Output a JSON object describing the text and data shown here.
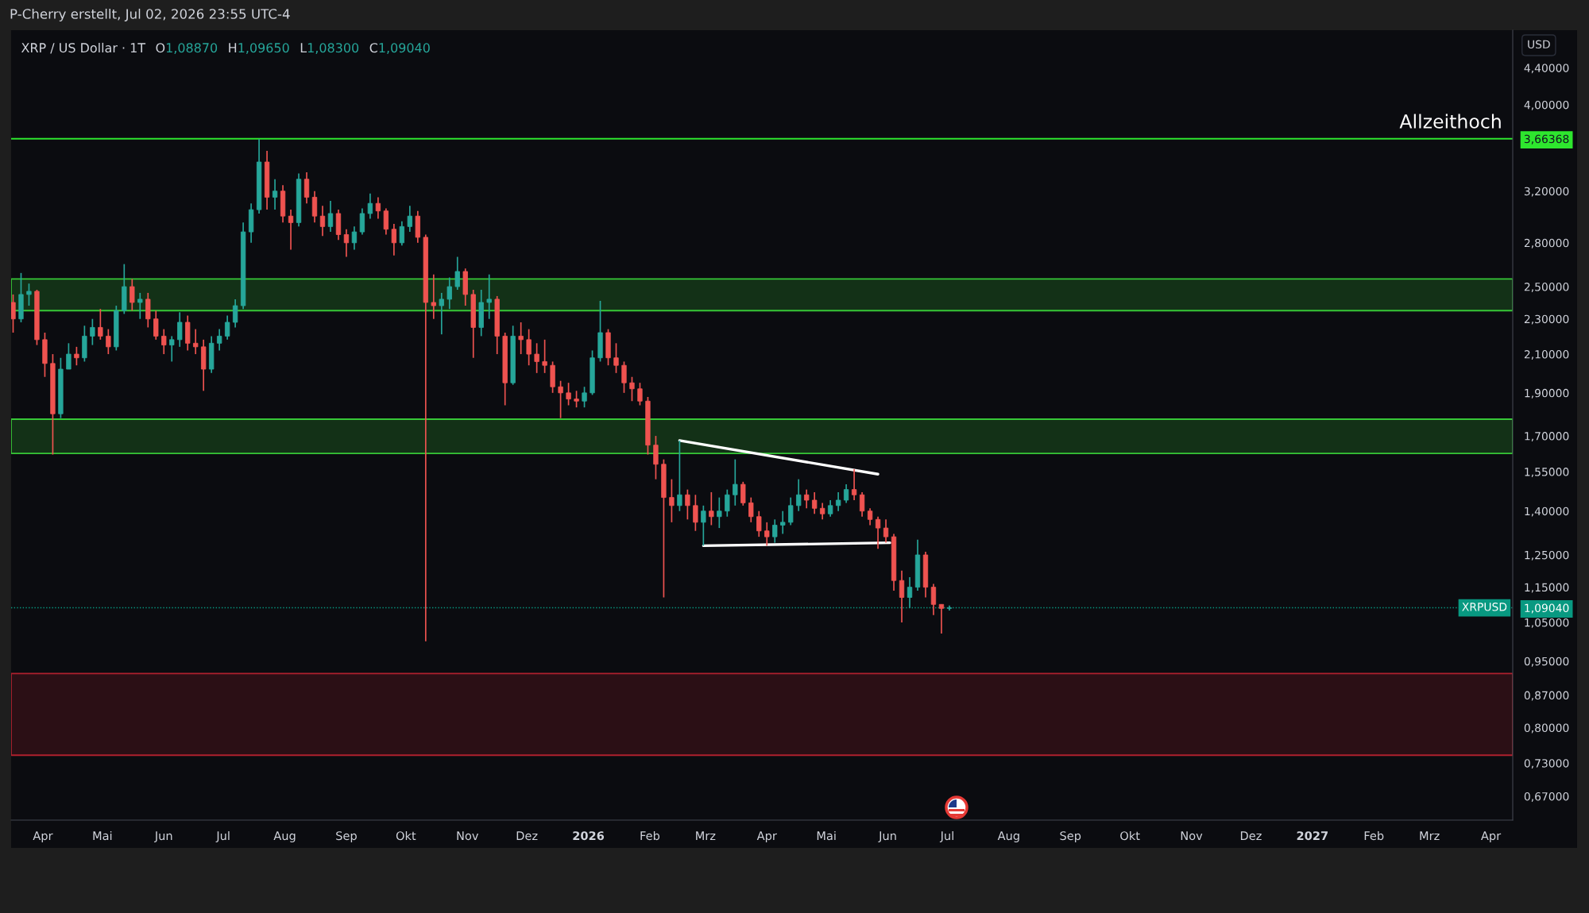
{
  "chart_data": {
    "type": "candlestick",
    "title": "XRP / US Dollar · 1T",
    "subtitle": "O1,08870 H1,09650 L1,08300 C1,09040",
    "ylabel": "USD",
    "log": true,
    "x": [
      "2025-03-17",
      "2025-03-21",
      "2025-03-25",
      "2025-03-29",
      "2025-04-02",
      "2025-04-06",
      "2025-04-10",
      "2025-04-14",
      "2025-04-18",
      "2025-04-22",
      "2025-04-26",
      "2025-04-30",
      "2025-05-04",
      "2025-05-08",
      "2025-05-12",
      "2025-05-16",
      "2025-05-20",
      "2025-05-24",
      "2025-05-28",
      "2025-06-01",
      "2025-06-05",
      "2025-06-09",
      "2025-06-13",
      "2025-06-17",
      "2025-06-21",
      "2025-06-25",
      "2025-06-29",
      "2025-07-03",
      "2025-07-07",
      "2025-07-11",
      "2025-07-15",
      "2025-07-19",
      "2025-07-23",
      "2025-07-27",
      "2025-07-31",
      "2025-08-04",
      "2025-08-08",
      "2025-08-12",
      "2025-08-16",
      "2025-08-20",
      "2025-08-24",
      "2025-08-28",
      "2025-09-01",
      "2025-09-05",
      "2025-09-09",
      "2025-09-13",
      "2025-09-17",
      "2025-09-21",
      "2025-09-25",
      "2025-09-29",
      "2025-10-03",
      "2025-10-07",
      "2025-10-11",
      "2025-10-15",
      "2025-10-19",
      "2025-10-23",
      "2025-10-27",
      "2025-10-31",
      "2025-11-04",
      "2025-11-08",
      "2025-11-12",
      "2025-11-16",
      "2025-11-20",
      "2025-11-24",
      "2025-11-28",
      "2025-12-02",
      "2025-12-06",
      "2025-12-10",
      "2025-12-14",
      "2025-12-18",
      "2025-12-22",
      "2025-12-26",
      "2025-12-30",
      "2026-01-03",
      "2026-01-07",
      "2026-01-11",
      "2026-01-15",
      "2026-01-19",
      "2026-01-23",
      "2026-01-27",
      "2026-01-31",
      "2026-02-04",
      "2026-02-08",
      "2026-02-12",
      "2026-02-16",
      "2026-02-20",
      "2026-02-24",
      "2026-02-28",
      "2026-03-04",
      "2026-03-08",
      "2026-03-12",
      "2026-03-16",
      "2026-03-20",
      "2026-03-24",
      "2026-03-28",
      "2026-04-01",
      "2026-04-05",
      "2026-04-09",
      "2026-04-13",
      "2026-04-17",
      "2026-04-21",
      "2026-04-25",
      "2026-04-29",
      "2026-05-03",
      "2026-05-07",
      "2026-05-11",
      "2026-05-15",
      "2026-05-19",
      "2026-05-23",
      "2026-05-27",
      "2026-05-31",
      "2026-06-04",
      "2026-06-08",
      "2026-06-12",
      "2026-06-16",
      "2026-06-20",
      "2026-06-24",
      "2026-06-28",
      "2026-07-02"
    ],
    "ohlc": [
      [
        2.4,
        2.45,
        2.22,
        2.3
      ],
      [
        2.3,
        2.59,
        2.28,
        2.45
      ],
      [
        2.45,
        2.52,
        2.38,
        2.47
      ],
      [
        2.47,
        2.48,
        2.15,
        2.18
      ],
      [
        2.18,
        2.22,
        1.98,
        2.05
      ],
      [
        2.05,
        2.1,
        1.62,
        1.8
      ],
      [
        1.8,
        2.08,
        1.78,
        2.02
      ],
      [
        2.02,
        2.16,
        2.02,
        2.1
      ],
      [
        2.1,
        2.14,
        2.04,
        2.08
      ],
      [
        2.08,
        2.26,
        2.06,
        2.2
      ],
      [
        2.2,
        2.3,
        2.15,
        2.25
      ],
      [
        2.25,
        2.36,
        2.18,
        2.2
      ],
      [
        2.2,
        2.24,
        2.1,
        2.14
      ],
      [
        2.14,
        2.38,
        2.12,
        2.35
      ],
      [
        2.35,
        2.65,
        2.33,
        2.5
      ],
      [
        2.5,
        2.55,
        2.35,
        2.4
      ],
      [
        2.4,
        2.46,
        2.3,
        2.42
      ],
      [
        2.42,
        2.46,
        2.25,
        2.3
      ],
      [
        2.3,
        2.35,
        2.18,
        2.2
      ],
      [
        2.2,
        2.24,
        2.1,
        2.15
      ],
      [
        2.15,
        2.2,
        2.06,
        2.18
      ],
      [
        2.18,
        2.34,
        2.14,
        2.28
      ],
      [
        2.28,
        2.32,
        2.12,
        2.16
      ],
      [
        2.16,
        2.24,
        2.1,
        2.14
      ],
      [
        2.14,
        2.18,
        1.91,
        2.02
      ],
      [
        2.02,
        2.2,
        2.0,
        2.16
      ],
      [
        2.16,
        2.24,
        2.12,
        2.2
      ],
      [
        2.2,
        2.32,
        2.18,
        2.28
      ],
      [
        2.28,
        2.42,
        2.25,
        2.38
      ],
      [
        2.38,
        2.95,
        2.36,
        2.88
      ],
      [
        2.88,
        3.1,
        2.8,
        3.05
      ],
      [
        3.05,
        3.66,
        3.02,
        3.45
      ],
      [
        3.45,
        3.55,
        3.05,
        3.15
      ],
      [
        3.15,
        3.3,
        3.05,
        3.2
      ],
      [
        3.2,
        3.25,
        2.95,
        3.0
      ],
      [
        3.0,
        3.05,
        2.75,
        2.95
      ],
      [
        2.95,
        3.35,
        2.92,
        3.3
      ],
      [
        3.3,
        3.36,
        3.1,
        3.15
      ],
      [
        3.15,
        3.2,
        2.95,
        3.0
      ],
      [
        3.0,
        3.08,
        2.85,
        2.92
      ],
      [
        2.92,
        3.12,
        2.88,
        3.02
      ],
      [
        3.02,
        3.05,
        2.82,
        2.86
      ],
      [
        2.86,
        2.9,
        2.7,
        2.8
      ],
      [
        2.8,
        2.92,
        2.75,
        2.88
      ],
      [
        2.88,
        3.06,
        2.86,
        3.02
      ],
      [
        3.02,
        3.18,
        2.98,
        3.1
      ],
      [
        3.1,
        3.15,
        2.98,
        3.04
      ],
      [
        3.04,
        3.06,
        2.86,
        2.9
      ],
      [
        2.9,
        2.94,
        2.71,
        2.8
      ],
      [
        2.8,
        2.96,
        2.78,
        2.92
      ],
      [
        2.92,
        3.08,
        2.88,
        3.0
      ],
      [
        3.0,
        3.04,
        2.8,
        2.84
      ],
      [
        2.84,
        2.86,
        1.0,
        2.4
      ],
      [
        2.4,
        2.58,
        2.3,
        2.38
      ],
      [
        2.38,
        2.46,
        2.21,
        2.42
      ],
      [
        2.42,
        2.56,
        2.36,
        2.5
      ],
      [
        2.5,
        2.7,
        2.48,
        2.6
      ],
      [
        2.6,
        2.62,
        2.38,
        2.45
      ],
      [
        2.45,
        2.48,
        2.08,
        2.25
      ],
      [
        2.25,
        2.48,
        2.2,
        2.4
      ],
      [
        2.4,
        2.58,
        2.3,
        2.42
      ],
      [
        2.42,
        2.44,
        2.1,
        2.2
      ],
      [
        2.2,
        2.22,
        1.84,
        1.95
      ],
      [
        1.95,
        2.26,
        1.94,
        2.2
      ],
      [
        2.2,
        2.28,
        2.1,
        2.18
      ],
      [
        2.18,
        2.24,
        2.04,
        2.1
      ],
      [
        2.1,
        2.16,
        2.0,
        2.06
      ],
      [
        2.06,
        2.18,
        2.0,
        2.04
      ],
      [
        2.04,
        2.06,
        1.9,
        1.93
      ],
      [
        1.93,
        1.96,
        1.78,
        1.9
      ],
      [
        1.9,
        1.95,
        1.84,
        1.87
      ],
      [
        1.87,
        1.91,
        1.83,
        1.86
      ],
      [
        1.86,
        1.93,
        1.83,
        1.9
      ],
      [
        1.9,
        2.12,
        1.89,
        2.08
      ],
      [
        2.08,
        2.41,
        2.06,
        2.22
      ],
      [
        2.22,
        2.24,
        2.04,
        2.08
      ],
      [
        2.08,
        2.16,
        2.0,
        2.04
      ],
      [
        2.04,
        2.06,
        1.9,
        1.95
      ],
      [
        1.95,
        1.98,
        1.86,
        1.92
      ],
      [
        1.92,
        1.95,
        1.84,
        1.86
      ],
      [
        1.86,
        1.88,
        1.62,
        1.66
      ],
      [
        1.66,
        1.7,
        1.52,
        1.58
      ],
      [
        1.58,
        1.6,
        1.12,
        1.45
      ],
      [
        1.45,
        1.52,
        1.36,
        1.42
      ],
      [
        1.42,
        1.68,
        1.4,
        1.46
      ],
      [
        1.46,
        1.48,
        1.37,
        1.42
      ],
      [
        1.42,
        1.46,
        1.33,
        1.36
      ],
      [
        1.36,
        1.42,
        1.28,
        1.4
      ],
      [
        1.4,
        1.47,
        1.35,
        1.38
      ],
      [
        1.38,
        1.45,
        1.34,
        1.4
      ],
      [
        1.4,
        1.48,
        1.38,
        1.46
      ],
      [
        1.46,
        1.6,
        1.42,
        1.5
      ],
      [
        1.5,
        1.51,
        1.42,
        1.43
      ],
      [
        1.43,
        1.45,
        1.36,
        1.38
      ],
      [
        1.38,
        1.4,
        1.31,
        1.33
      ],
      [
        1.33,
        1.36,
        1.28,
        1.31
      ],
      [
        1.31,
        1.37,
        1.29,
        1.35
      ],
      [
        1.35,
        1.4,
        1.32,
        1.36
      ],
      [
        1.36,
        1.45,
        1.35,
        1.42
      ],
      [
        1.42,
        1.52,
        1.4,
        1.46
      ],
      [
        1.46,
        1.48,
        1.41,
        1.44
      ],
      [
        1.44,
        1.47,
        1.39,
        1.41
      ],
      [
        1.41,
        1.43,
        1.37,
        1.39
      ],
      [
        1.39,
        1.44,
        1.38,
        1.42
      ],
      [
        1.42,
        1.47,
        1.4,
        1.44
      ],
      [
        1.44,
        1.5,
        1.43,
        1.48
      ],
      [
        1.48,
        1.56,
        1.44,
        1.46
      ],
      [
        1.46,
        1.47,
        1.38,
        1.4
      ],
      [
        1.4,
        1.41,
        1.35,
        1.37
      ],
      [
        1.37,
        1.38,
        1.27,
        1.34
      ],
      [
        1.34,
        1.37,
        1.29,
        1.31
      ],
      [
        1.31,
        1.32,
        1.14,
        1.17
      ],
      [
        1.17,
        1.2,
        1.05,
        1.12
      ],
      [
        1.12,
        1.18,
        1.09,
        1.15
      ],
      [
        1.15,
        1.3,
        1.14,
        1.25
      ],
      [
        1.25,
        1.26,
        1.12,
        1.15
      ],
      [
        1.15,
        1.16,
        1.07,
        1.1
      ],
      [
        1.1,
        1.1,
        1.02,
        1.0887
      ],
      [
        1.0887,
        1.0965,
        1.083,
        1.0904
      ]
    ],
    "colors": [
      "#ef5350",
      "#26a69a",
      "#26a69a",
      "#ef5350",
      "#ef5350",
      "#ef5350",
      "#26a69a",
      "#26a69a",
      "#ef5350",
      "#26a69a",
      "#26a69a",
      "#ef5350",
      "#ef5350",
      "#26a69a",
      "#26a69a",
      "#ef5350",
      "#26a69a",
      "#ef5350",
      "#ef5350",
      "#ef5350",
      "#26a69a",
      "#26a69a",
      "#ef5350",
      "#ef5350",
      "#ef5350",
      "#26a69a",
      "#26a69a",
      "#26a69a",
      "#26a69a",
      "#26a69a",
      "#26a69a",
      "#26a69a",
      "#ef5350",
      "#26a69a",
      "#ef5350",
      "#ef5350",
      "#26a69a",
      "#ef5350",
      "#ef5350",
      "#ef5350",
      "#26a69a",
      "#ef5350",
      "#ef5350",
      "#26a69a",
      "#26a69a",
      "#26a69a",
      "#ef5350",
      "#ef5350",
      "#ef5350",
      "#26a69a",
      "#26a69a",
      "#ef5350",
      "#ef5350",
      "#ef5350",
      "#26a69a",
      "#26a69a",
      "#26a69a",
      "#ef5350",
      "#ef5350",
      "#26a69a",
      "#26a69a",
      "#ef5350",
      "#ef5350",
      "#26a69a",
      "#ef5350",
      "#ef5350",
      "#ef5350",
      "#ef5350",
      "#ef5350",
      "#ef5350",
      "#ef5350",
      "#ef5350",
      "#26a69a",
      "#26a69a",
      "#26a69a",
      "#ef5350",
      "#ef5350",
      "#ef5350",
      "#ef5350",
      "#ef5350",
      "#ef5350",
      "#ef5350",
      "#ef5350",
      "#ef5350",
      "#26a69a",
      "#ef5350",
      "#ef5350",
      "#26a69a",
      "#ef5350",
      "#26a69a",
      "#26a69a",
      "#26a69a",
      "#ef5350",
      "#ef5350",
      "#ef5350",
      "#ef5350",
      "#26a69a",
      "#26a69a",
      "#26a69a",
      "#26a69a",
      "#ef5350",
      "#ef5350",
      "#ef5350",
      "#26a69a",
      "#26a69a",
      "#26a69a",
      "#ef5350",
      "#ef5350",
      "#ef5350",
      "#ef5350",
      "#ef5350",
      "#ef5350",
      "#ef5350",
      "#26a69a",
      "#26a69a",
      "#ef5350",
      "#ef5350",
      "#ef5350",
      "#26a69a"
    ],
    "series": [
      {
        "type": "line",
        "x": [
          "2026-02-16",
          "2026-05-27"
        ],
        "values": [
          1.68,
          1.54
        ],
        "color": "#ffffff"
      },
      {
        "type": "line",
        "x": [
          "2026-02-28",
          "2026-06-02"
        ],
        "values": [
          1.28,
          1.29
        ],
        "color": "#ffffff"
      }
    ],
    "xlim": [
      "2025-03-16",
      "2027-04-12"
    ],
    "xticks": [
      {
        "value": "2025-04-01",
        "label": "Apr"
      },
      {
        "value": "2025-05-01",
        "label": "Mai"
      },
      {
        "value": "2025-06-01",
        "label": "Jun"
      },
      {
        "value": "2025-07-01",
        "label": "Jul"
      },
      {
        "value": "2025-08-01",
        "label": "Aug"
      },
      {
        "value": "2025-09-01",
        "label": "Sep"
      },
      {
        "value": "2025-10-01",
        "label": "Okt"
      },
      {
        "value": "2025-11-01",
        "label": "Nov"
      },
      {
        "value": "2025-12-01",
        "label": "Dez"
      },
      {
        "value": "2026-01-01",
        "label": "2026"
      },
      {
        "value": "2026-02-01",
        "label": "Feb"
      },
      {
        "value": "2026-03-01",
        "label": "Mrz"
      },
      {
        "value": "2026-04-01",
        "label": "Apr"
      },
      {
        "value": "2026-05-01",
        "label": "Mai"
      },
      {
        "value": "2026-06-01",
        "label": "Jun"
      },
      {
        "value": "2026-07-01",
        "label": "Jul"
      },
      {
        "value": "2026-08-01",
        "label": "Aug"
      },
      {
        "value": "2026-09-01",
        "label": "Sep"
      },
      {
        "value": "2026-10-01",
        "label": "Okt"
      },
      {
        "value": "2026-11-01",
        "label": "Nov"
      },
      {
        "value": "2026-12-01",
        "label": "Dez"
      },
      {
        "value": "2027-01-01",
        "label": "2027"
      },
      {
        "value": "2027-02-01",
        "label": "Feb"
      },
      {
        "value": "2027-03-01",
        "label": "Mrz"
      },
      {
        "value": "2027-04-01",
        "label": "Apr"
      }
    ],
    "ylim": [
      0.63,
      4.85
    ],
    "yticks": [
      {
        "value": 0.67,
        "label": "0,67000"
      },
      {
        "value": 0.73,
        "label": "0,73000"
      },
      {
        "value": 0.8,
        "label": "0,80000"
      },
      {
        "value": 0.87,
        "label": "0,87000"
      },
      {
        "value": 0.95,
        "label": "0,95000"
      },
      {
        "value": 1.05,
        "label": "1,05000"
      },
      {
        "value": 1.0904,
        "label": "1,09040"
      },
      {
        "value": 1.15,
        "label": "1,15000"
      },
      {
        "value": 1.25,
        "label": "1,25000"
      },
      {
        "value": 1.4,
        "label": "1,40000"
      },
      {
        "value": 1.55,
        "label": "1,55000"
      },
      {
        "value": 1.7,
        "label": "1,70000"
      },
      {
        "value": 1.9,
        "label": "1,90000"
      },
      {
        "value": 2.1,
        "label": "2,10000"
      },
      {
        "value": 2.3,
        "label": "2,30000"
      },
      {
        "value": 2.5,
        "label": "2,50000"
      },
      {
        "value": 2.8,
        "label": "2,80000"
      },
      {
        "value": 3.2,
        "label": "3,20000"
      },
      {
        "value": 3.66368,
        "label": "3,66368"
      },
      {
        "value": 4.0,
        "label": "4,00000"
      },
      {
        "value": 4.4,
        "label": "4,40000"
      }
    ],
    "bands": [
      {
        "axis": "y",
        "from": 2.35,
        "to": 2.55,
        "color": "#37c837"
      },
      {
        "axis": "y",
        "from": 1.625,
        "to": 1.775,
        "color": "#37c837"
      },
      {
        "axis": "y",
        "from": 0.745,
        "to": 0.92,
        "color": "#b0202e"
      }
    ],
    "ref_lines": [
      {
        "axis": "y",
        "value": 3.66368,
        "label": "Allzeithoch",
        "color": "#2ee62e"
      },
      {
        "axis": "y",
        "value": 1.0904,
        "label": "XRPUSD",
        "color": "#089981",
        "line_style": "dotted"
      }
    ],
    "annotations": [
      "P-Cherry erstellt, Jul 02, 2026 23:55 UTC-4"
    ]
  }
}
